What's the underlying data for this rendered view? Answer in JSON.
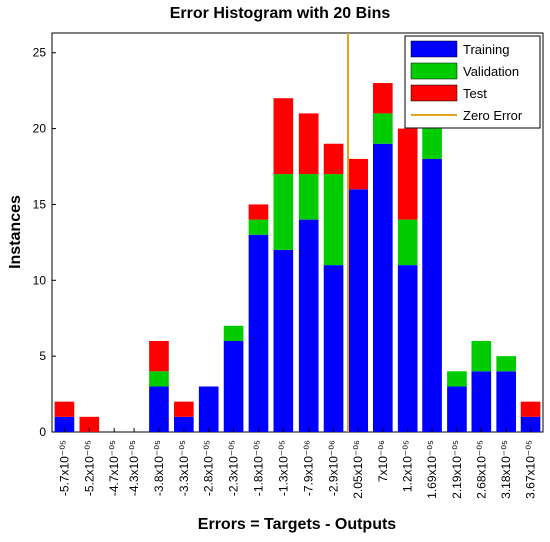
{
  "chart_data": {
    "type": "stacked-histogram",
    "title": "Error Histogram with 20 Bins",
    "x_label": "Errors = Targets - Outputs",
    "y_label": "Instances",
    "xticks": [
      {
        "value": -5.7e-05,
        "label": "-5.7x10⁻⁰⁵"
      },
      {
        "value": -5.2e-05,
        "label": "-5.2x10⁻⁰⁵"
      },
      {
        "value": -4.7e-05,
        "label": "-4.7x10⁻⁰⁵"
      },
      {
        "value": -4.3e-05,
        "label": "-4.3x10⁻⁰⁵"
      },
      {
        "value": -3.8e-05,
        "label": "-3.8x10⁻⁰⁵"
      },
      {
        "value": -3.3e-05,
        "label": "-3.3x10⁻⁰⁵"
      },
      {
        "value": -2.8e-05,
        "label": "-2.8x10⁻⁰⁵"
      },
      {
        "value": -2.3e-05,
        "label": "-2.3x10⁻⁰⁵"
      },
      {
        "value": -1.8e-05,
        "label": "-1.8x10⁻⁰⁵"
      },
      {
        "value": -1.3e-05,
        "label": "-1.3x10⁻⁰⁵"
      },
      {
        "value": -7.9e-06,
        "label": "-7.9x10⁻⁰⁶"
      },
      {
        "value": -2.9e-06,
        "label": "-2.9x10⁻⁰⁶"
      },
      {
        "value": 2.05e-06,
        "label": "2.05x10⁻⁰⁶"
      },
      {
        "value": 7e-06,
        "label": "7x10⁻⁰⁶"
      },
      {
        "value": 1.2e-05,
        "label": "1.2x10⁻⁰⁵"
      },
      {
        "value": 1.69e-05,
        "label": "1.69x10⁻⁰⁵"
      },
      {
        "value": 2.19e-05,
        "label": "2.19x10⁻⁰⁵"
      },
      {
        "value": 2.68e-05,
        "label": "2.68x10⁻⁰⁵"
      },
      {
        "value": 3.18e-05,
        "label": "3.18x10⁻⁰⁵"
      },
      {
        "value": 3.67e-05,
        "label": "3.67x10⁻⁰⁵"
      }
    ],
    "xlim": [
      -5.95e-05,
      3.92e-05
    ],
    "ylim": [
      0,
      26.3
    ],
    "yticks": [
      0,
      5,
      10,
      15,
      20,
      25
    ],
    "series": [
      {
        "name": "Training",
        "color": "#0000ff",
        "values": [
          1,
          0,
          0,
          0,
          3,
          1,
          3,
          6,
          13,
          12,
          14,
          11,
          16,
          19,
          11,
          18,
          3,
          4,
          4,
          1
        ]
      },
      {
        "name": "Validation",
        "color": "#00cc00",
        "values": [
          0,
          0,
          0,
          0,
          1,
          0,
          0,
          1,
          1,
          5,
          3,
          6,
          0,
          2,
          3,
          2,
          1,
          2,
          1,
          0
        ]
      },
      {
        "name": "Test",
        "color": "#ff0000",
        "values": [
          1,
          1,
          0,
          0,
          2,
          1,
          0,
          0,
          1,
          5,
          4,
          2,
          2,
          2,
          6,
          0,
          0,
          0,
          0,
          1
        ]
      }
    ],
    "reference_line": {
      "name": "Zero Error",
      "value": 0,
      "color": "#e8a317"
    },
    "legend": "top-right"
  }
}
